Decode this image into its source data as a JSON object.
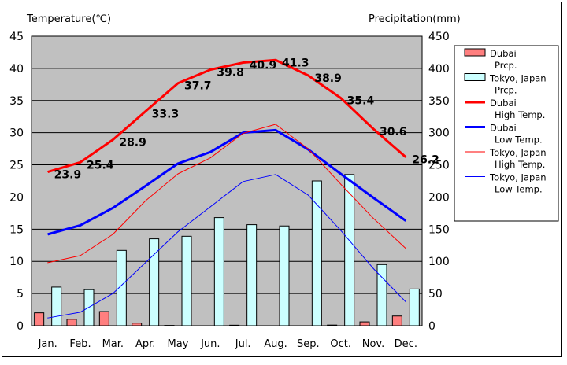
{
  "chart_data": {
    "type": "bar+line",
    "left_axis_title": "Temperature(℃)",
    "right_axis_title": "Precipitation(mm)",
    "left_ylim": [
      0,
      45
    ],
    "left_ticks": [
      0,
      5,
      10,
      15,
      20,
      25,
      30,
      35,
      40,
      45
    ],
    "right_ylim": [
      0,
      450
    ],
    "right_ticks": [
      0,
      50,
      100,
      150,
      200,
      250,
      300,
      350,
      400,
      450
    ],
    "categories": [
      "Jan.",
      "Feb.",
      "Mar.",
      "Apr.",
      "May",
      "Jun.",
      "Jul.",
      "Aug.",
      "Sep.",
      "Oct.",
      "Nov.",
      "Dec."
    ],
    "bar_series": [
      {
        "key": "dubai_prcp",
        "name": "Dubai Prcp.",
        "legend_lines": [
          "Dubai",
          "Prcp."
        ],
        "color": "#ff7f7f",
        "values": [
          20,
          10,
          22,
          4,
          0.5,
          0,
          0.8,
          0,
          0,
          1,
          6,
          15
        ]
      },
      {
        "key": "tokyo_prcp",
        "name": "Tokyo, Japan Prcp.",
        "legend_lines": [
          "Tokyo, Japan",
          "Prcp."
        ],
        "color": "#ccffff",
        "values": [
          60,
          56,
          117,
          135,
          139,
          168,
          157,
          155,
          225,
          235,
          95,
          57
        ]
      }
    ],
    "line_series": [
      {
        "key": "dubai_high",
        "name": "Dubai High Temp.",
        "legend_lines": [
          "Dubai",
          "High Temp."
        ],
        "color": "#ff0000",
        "width": 3,
        "values": [
          23.9,
          25.4,
          28.9,
          33.3,
          37.7,
          39.8,
          40.9,
          41.3,
          38.9,
          35.4,
          30.6,
          26.2
        ],
        "labels": [
          "23.9",
          "25.4",
          "28.9",
          "33.3",
          "37.7",
          "39.8",
          "40.9",
          "41.3",
          "38.9",
          "35.4",
          "30.6",
          "26.2"
        ]
      },
      {
        "key": "dubai_low",
        "name": "Dubai Low Temp.",
        "legend_lines": [
          "Dubai",
          "Low Temp."
        ],
        "color": "#0000ff",
        "width": 3,
        "values": [
          14.2,
          15.6,
          18.3,
          21.7,
          25.2,
          27.0,
          30.0,
          30.4,
          27.4,
          23.6,
          19.9,
          16.3
        ]
      },
      {
        "key": "tokyo_high",
        "name": "Tokyo, Japan High Temp.",
        "legend_lines": [
          "Tokyo, Japan",
          "High Temp."
        ],
        "color": "#ff0000",
        "width": 1,
        "values": [
          9.8,
          10.9,
          14.2,
          19.4,
          23.6,
          26.1,
          29.9,
          31.3,
          27.5,
          22.0,
          16.7,
          12.0
        ]
      },
      {
        "key": "tokyo_low",
        "name": "Tokyo, Japan Low Temp.",
        "legend_lines": [
          "Tokyo, Japan",
          "Low Temp."
        ],
        "color": "#0000ff",
        "width": 1,
        "values": [
          1.2,
          2.1,
          5.0,
          9.8,
          14.6,
          18.5,
          22.4,
          23.5,
          20.3,
          14.8,
          8.9,
          3.7
        ]
      }
    ],
    "legend_position": "right",
    "grid": true
  }
}
